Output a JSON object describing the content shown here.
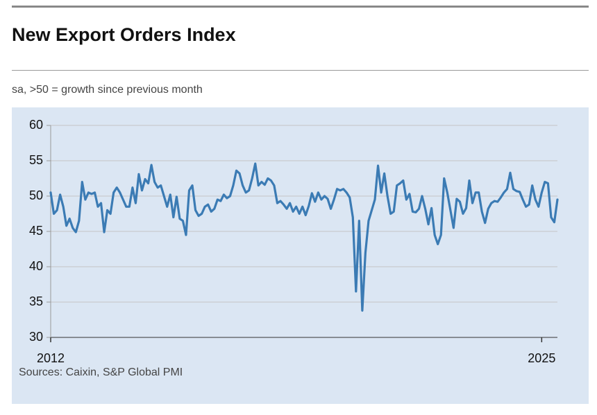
{
  "chart_data": {
    "type": "line",
    "title": "New Export Orders Index",
    "subtitle": "sa, >50 = growth since previous month",
    "source": "Sources: Caixin, S&P Global PMI",
    "categories": [
      "2012",
      null,
      null,
      null,
      null,
      null,
      null,
      null,
      null,
      null,
      null,
      null,
      null,
      null,
      null,
      null,
      null,
      null,
      null,
      null,
      null,
      null,
      null,
      null,
      null,
      null,
      null,
      null,
      null,
      null,
      null,
      null,
      null,
      null,
      null,
      null,
      null,
      null,
      null,
      null,
      null,
      null,
      null,
      null,
      null,
      null,
      null,
      null,
      null,
      null,
      null,
      null,
      null,
      null,
      null,
      null,
      null,
      null,
      null,
      null,
      null,
      null,
      null,
      null,
      null,
      null,
      null,
      null,
      null,
      null,
      null,
      null,
      null,
      null,
      null,
      null,
      null,
      null,
      null,
      null,
      null,
      null,
      null,
      null,
      null,
      null,
      null,
      null,
      null,
      null,
      null,
      null,
      null,
      null,
      null,
      null,
      null,
      null,
      null,
      null,
      null,
      null,
      null,
      null,
      null,
      null,
      null,
      null,
      null,
      null,
      null,
      null,
      null,
      null,
      null,
      null,
      null,
      null,
      null,
      null,
      null,
      null,
      null,
      null,
      null,
      null,
      null,
      null,
      null,
      null,
      null,
      null,
      null,
      null,
      null,
      null,
      null,
      null,
      null,
      null,
      null,
      null,
      null,
      null,
      null,
      null,
      null,
      null,
      null,
      null,
      null,
      null,
      null,
      null,
      null,
      null,
      "2025",
      null,
      null,
      null,
      null,
      null
    ],
    "values": [
      50.5,
      47.5,
      48,
      50.2,
      48.5,
      45.8,
      46.8,
      45.5,
      44.9,
      46.5,
      52,
      49.5,
      50.5,
      50.3,
      50.5,
      48.5,
      49,
      44.9,
      48,
      47.5,
      50.5,
      51.2,
      50.5,
      49.5,
      48.5,
      48.5,
      51.2,
      49,
      53.1,
      50.8,
      52.4,
      51.8,
      54.4,
      52,
      51.2,
      51.5,
      50,
      48.5,
      50.2,
      47,
      49.9,
      46.8,
      46.5,
      44.5,
      50.8,
      51.5,
      48,
      47.2,
      47.5,
      48.5,
      48.8,
      47.8,
      48.2,
      49.5,
      49.3,
      50.2,
      49.7,
      50,
      51.5,
      53.6,
      53.2,
      51.5,
      50.5,
      50.8,
      52.5,
      54.6,
      51.5,
      52,
      51.6,
      52.5,
      52.2,
      51.5,
      49,
      49.3,
      48.8,
      48.2,
      49,
      47.8,
      48.5,
      47.5,
      48.5,
      47.3,
      48.6,
      50.4,
      49.2,
      50.5,
      49.5,
      50,
      49.6,
      48.2,
      49.5,
      51,
      50.8,
      51,
      50.5,
      49.8,
      47,
      36.5,
      46.5,
      33.8,
      42,
      46.5,
      48,
      49.5,
      54.3,
      50.5,
      53.2,
      50,
      47.5,
      47.8,
      51.5,
      51.8,
      52.2,
      49.5,
      50.3,
      47.8,
      47.7,
      48.2,
      50,
      48.2,
      46,
      48.3,
      44.5,
      43.2,
      44.5,
      52.5,
      50.5,
      48,
      45.5,
      49.6,
      49.2,
      47.5,
      48.3,
      52.2,
      49,
      50.5,
      50.5,
      47.8,
      46.2,
      48.2,
      49,
      49.3,
      49.2,
      49.8,
      50.5,
      51,
      53.3,
      51,
      50.7,
      50.6,
      49.5,
      48.5,
      48.8,
      51.5,
      49.5,
      48.5,
      50.5,
      52,
      51.8,
      47,
      46.3,
      49.5
    ],
    "color": "#3b7bb4",
    "ylim": [
      30,
      60
    ],
    "yticks": [
      30,
      35,
      40,
      45,
      50,
      55,
      60
    ],
    "grid": true
  }
}
